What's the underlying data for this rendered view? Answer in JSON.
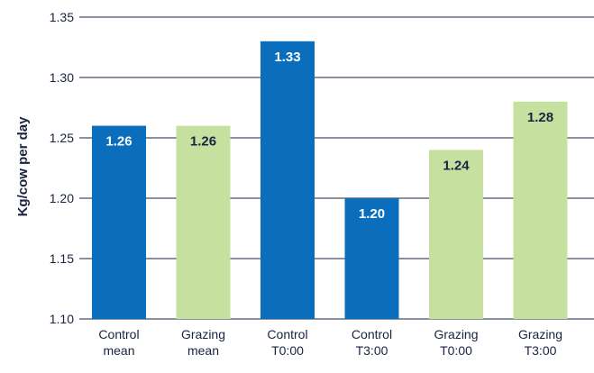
{
  "chart_data": {
    "type": "bar",
    "title": "",
    "xlabel": "",
    "ylabel": "Kg/cow per day",
    "ylim": [
      1.1,
      1.35
    ],
    "yticks": [
      "1.10",
      "1.15",
      "1.20",
      "1.25",
      "1.30",
      "1.35"
    ],
    "grid": true,
    "categories": [
      [
        "Control",
        "mean"
      ],
      [
        "Grazing",
        "mean"
      ],
      [
        "Control",
        "T0:00"
      ],
      [
        "Control",
        "T3:00"
      ],
      [
        "Grazing",
        "T0:00"
      ],
      [
        "Grazing",
        "T3:00"
      ]
    ],
    "values": [
      1.26,
      1.26,
      1.33,
      1.2,
      1.24,
      1.28
    ],
    "labels": [
      "1.26",
      "1.26",
      "1.33",
      "1.20",
      "1.24",
      "1.28"
    ],
    "groups": [
      "Control",
      "Grazing",
      "Control",
      "Control",
      "Grazing",
      "Grazing"
    ],
    "colors": {
      "Control": "#0a6ebd",
      "Grazing": "#c6e0a0",
      "label_on_Control": "#ffffff",
      "label_on_Grazing": "#1a2340",
      "grid": "#1a2340"
    }
  }
}
